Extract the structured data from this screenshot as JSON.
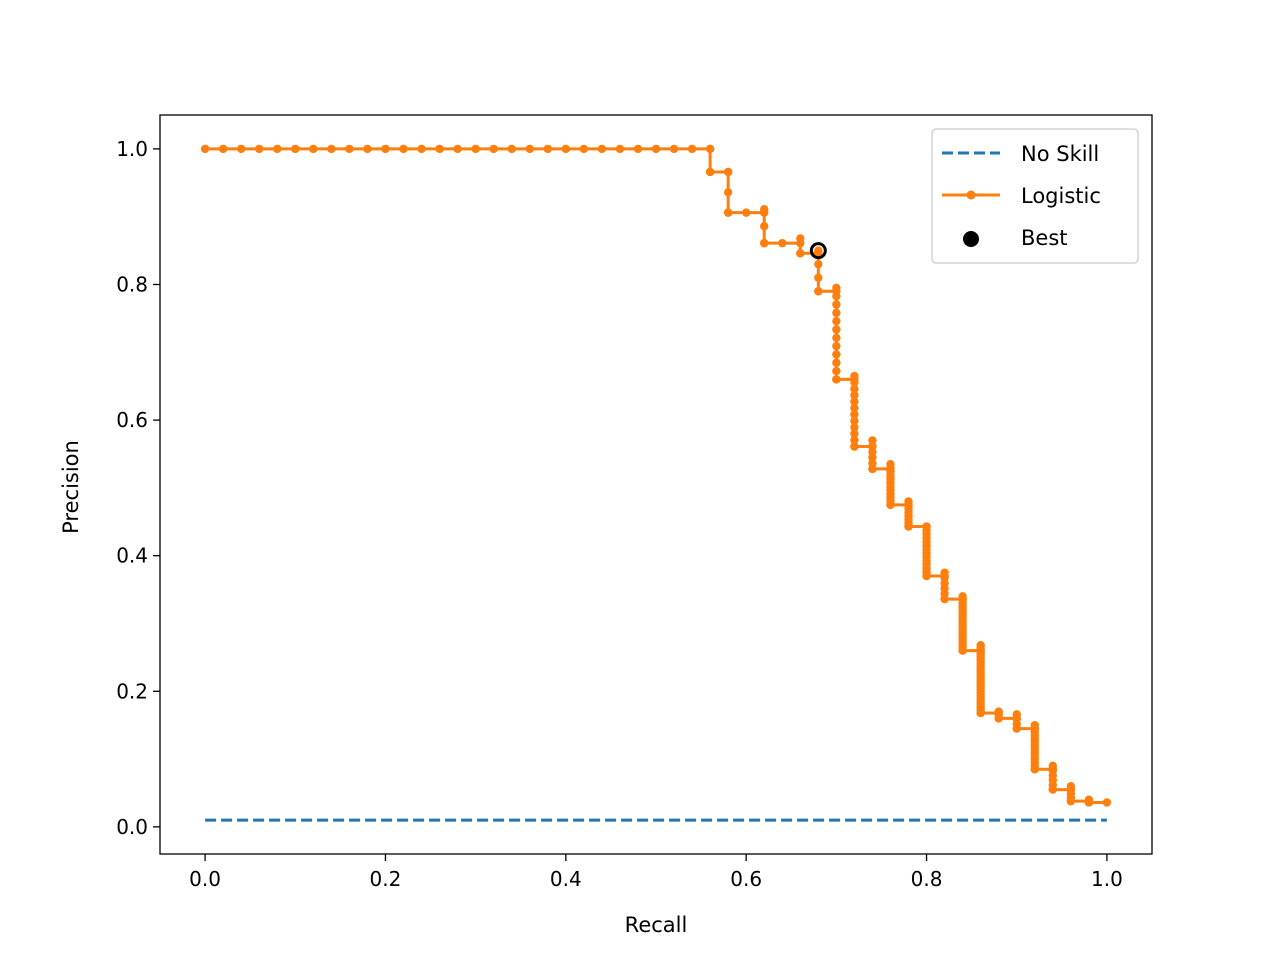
{
  "chart_data": {
    "type": "line",
    "xlabel": "Recall",
    "ylabel": "Precision",
    "xlim": [
      -0.05,
      1.05
    ],
    "ylim": [
      -0.04,
      1.05
    ],
    "xticks": [
      0.0,
      0.2,
      0.4,
      0.6,
      0.8,
      1.0
    ],
    "yticks": [
      0.0,
      0.2,
      0.4,
      0.6,
      0.8,
      1.0
    ],
    "xtick_labels": [
      "0.0",
      "0.2",
      "0.4",
      "0.6",
      "0.8",
      "1.0"
    ],
    "ytick_labels": [
      "0.0",
      "0.2",
      "0.4",
      "0.6",
      "0.8",
      "1.0"
    ],
    "grid": false,
    "legend_position": "top-right",
    "series": [
      {
        "name": "No Skill",
        "style": "dashed",
        "color": "#1f77b4",
        "x": [
          0.0,
          1.0
        ],
        "y": [
          0.01,
          0.01
        ]
      },
      {
        "name": "Logistic",
        "style": "line-markers",
        "color": "#ff7f0e",
        "steps": [
          [
            0.0,
            1.0
          ],
          [
            0.56,
            1.0
          ],
          [
            0.56,
            0.966
          ],
          [
            0.58,
            0.966
          ],
          [
            0.58,
            0.906
          ],
          [
            0.62,
            0.906
          ],
          [
            0.62,
            0.861
          ],
          [
            0.66,
            0.861
          ],
          [
            0.66,
            0.846
          ],
          [
            0.68,
            0.846
          ],
          [
            0.68,
            0.79
          ],
          [
            0.7,
            0.79
          ],
          [
            0.7,
            0.66
          ],
          [
            0.72,
            0.66
          ],
          [
            0.72,
            0.561
          ],
          [
            0.74,
            0.561
          ],
          [
            0.74,
            0.528
          ],
          [
            0.76,
            0.528
          ],
          [
            0.76,
            0.475
          ],
          [
            0.78,
            0.475
          ],
          [
            0.78,
            0.443
          ],
          [
            0.8,
            0.443
          ],
          [
            0.8,
            0.37
          ],
          [
            0.82,
            0.37
          ],
          [
            0.82,
            0.336
          ],
          [
            0.84,
            0.336
          ],
          [
            0.84,
            0.26
          ],
          [
            0.86,
            0.26
          ],
          [
            0.86,
            0.168
          ],
          [
            0.88,
            0.168
          ],
          [
            0.88,
            0.16
          ],
          [
            0.9,
            0.16
          ],
          [
            0.9,
            0.145
          ],
          [
            0.92,
            0.145
          ],
          [
            0.92,
            0.085
          ],
          [
            0.94,
            0.085
          ],
          [
            0.94,
            0.055
          ],
          [
            0.96,
            0.055
          ],
          [
            0.96,
            0.038
          ],
          [
            0.98,
            0.038
          ],
          [
            0.98,
            0.036
          ],
          [
            1.0,
            0.036
          ]
        ],
        "vertical_drops": [
          {
            "x": 0.56,
            "y_from": 1.0,
            "y_to": 0.966,
            "points": 2
          },
          {
            "x": 0.58,
            "y_from": 0.966,
            "y_to": 0.906,
            "points": 3
          },
          {
            "x": 0.62,
            "y_from": 0.911,
            "y_to": 0.861,
            "points": 3
          },
          {
            "x": 0.66,
            "y_from": 0.868,
            "y_to": 0.846,
            "points": 2
          },
          {
            "x": 0.68,
            "y_from": 0.85,
            "y_to": 0.79,
            "points": 4
          },
          {
            "x": 0.7,
            "y_from": 0.795,
            "y_to": 0.66,
            "points": 12
          },
          {
            "x": 0.72,
            "y_from": 0.665,
            "y_to": 0.561,
            "points": 12
          },
          {
            "x": 0.74,
            "y_from": 0.57,
            "y_to": 0.528,
            "points": 6
          },
          {
            "x": 0.76,
            "y_from": 0.535,
            "y_to": 0.475,
            "points": 12
          },
          {
            "x": 0.78,
            "y_from": 0.48,
            "y_to": 0.443,
            "points": 8
          },
          {
            "x": 0.8,
            "y_from": 0.443,
            "y_to": 0.37,
            "points": 14
          },
          {
            "x": 0.82,
            "y_from": 0.375,
            "y_to": 0.336,
            "points": 6
          },
          {
            "x": 0.84,
            "y_from": 0.34,
            "y_to": 0.26,
            "points": 18
          },
          {
            "x": 0.86,
            "y_from": 0.268,
            "y_to": 0.168,
            "points": 24
          },
          {
            "x": 0.88,
            "y_from": 0.17,
            "y_to": 0.16,
            "points": 3
          },
          {
            "x": 0.9,
            "y_from": 0.166,
            "y_to": 0.145,
            "points": 4
          },
          {
            "x": 0.92,
            "y_from": 0.15,
            "y_to": 0.085,
            "points": 14
          },
          {
            "x": 0.94,
            "y_from": 0.09,
            "y_to": 0.055,
            "points": 6
          },
          {
            "x": 0.96,
            "y_from": 0.06,
            "y_to": 0.038,
            "points": 5
          },
          {
            "x": 0.98,
            "y_from": 0.04,
            "y_to": 0.036,
            "points": 3
          }
        ],
        "flat_markers_step": 0.02
      },
      {
        "name": "Best",
        "style": "scatter",
        "color": "#000000",
        "x": [
          0.68
        ],
        "y": [
          0.85
        ]
      }
    ]
  }
}
